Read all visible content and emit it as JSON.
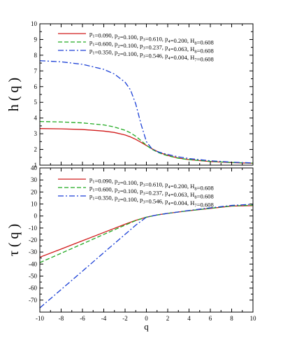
{
  "chart_data": [
    {
      "type": "line",
      "ylabel": "h ( q )",
      "xlabel": "",
      "xlim": [
        -10,
        10
      ],
      "ylim": [
        1,
        10
      ],
      "xticks": [
        -10,
        -8,
        -6,
        -4,
        -2,
        0,
        2,
        4,
        6,
        8,
        10
      ],
      "yticks": [
        1,
        2,
        3,
        4,
        5,
        6,
        7,
        8,
        9,
        10
      ],
      "legend_position": "top-right",
      "series": [
        {
          "name": "p1=0.090, p2=0.100, p3=0.610, p4=0.200, H8=0.608",
          "color": "#d11a1a",
          "dash": "solid",
          "x": [
            -10,
            -8,
            -6,
            -4,
            -3,
            -2,
            -1.5,
            -1,
            -0.5,
            0,
            0.5,
            1,
            1.5,
            2,
            3,
            4,
            6,
            8,
            10
          ],
          "y": [
            3.33,
            3.31,
            3.27,
            3.17,
            3.08,
            2.92,
            2.8,
            2.64,
            2.45,
            2.25,
            2.05,
            1.88,
            1.74,
            1.62,
            1.45,
            1.35,
            1.23,
            1.16,
            1.12
          ]
        },
        {
          "name": "p1=0.600, p2=0.100, p3=0.237, p4=0.063, H8=0.608",
          "color": "#22aa22",
          "dash": "dashed",
          "x": [
            -10,
            -8,
            -6,
            -4,
            -3,
            -2,
            -1.5,
            -1,
            -0.5,
            0,
            0.5,
            1,
            1.5,
            2,
            3,
            4,
            6,
            8,
            10
          ],
          "y": [
            3.78,
            3.75,
            3.69,
            3.56,
            3.43,
            3.22,
            3.06,
            2.84,
            2.56,
            2.27,
            2.02,
            1.84,
            1.7,
            1.6,
            1.44,
            1.35,
            1.24,
            1.17,
            1.13
          ]
        },
        {
          "name": "p1=0.350, p2=0.100, p3=0.546, p4=0.004, H7=0.608",
          "color": "#1a3fd6",
          "dash": "dashdot",
          "x": [
            -10,
            -8,
            -6,
            -4,
            -3,
            -2,
            -1.5,
            -1,
            -0.5,
            0,
            0.5,
            1,
            1.5,
            2,
            3,
            4,
            6,
            8,
            10
          ],
          "y": [
            7.65,
            7.58,
            7.42,
            7.1,
            6.8,
            6.28,
            5.8,
            4.9,
            3.6,
            2.5,
            2.05,
            1.87,
            1.77,
            1.68,
            1.53,
            1.42,
            1.28,
            1.19,
            1.14
          ]
        }
      ]
    },
    {
      "type": "line",
      "ylabel": "τ ( q )",
      "xlabel": "q",
      "xlim": [
        -10,
        10
      ],
      "ylim": [
        -80,
        40
      ],
      "xticks": [
        -10,
        -8,
        -6,
        -4,
        -2,
        0,
        2,
        4,
        6,
        8,
        10
      ],
      "yticks": [
        -70,
        -60,
        -50,
        -40,
        -30,
        -20,
        -10,
        0,
        10,
        20,
        30,
        40
      ],
      "legend_position": "top-right",
      "series": [
        {
          "name": "p1=0.090, p2=0.100, p3=0.610, p4=0.200, H8=0.608",
          "color": "#d11a1a",
          "dash": "solid",
          "x": [
            -10,
            -8,
            -6,
            -4,
            -2,
            -1,
            0,
            1,
            2,
            4,
            6,
            8,
            10
          ],
          "y": [
            -34.3,
            -27.5,
            -20.6,
            -13.7,
            -6.8,
            -3.6,
            -1.0,
            0.9,
            2.2,
            4.4,
            6.3,
            8.3,
            8.6
          ]
        },
        {
          "name": "p1=0.600, p2=0.100, p3=0.237, p4=0.063, H8=0.608",
          "color": "#22aa22",
          "dash": "dashed",
          "x": [
            -10,
            -8,
            -6,
            -4,
            -2,
            -1,
            0,
            1,
            2,
            4,
            6,
            8,
            10
          ],
          "y": [
            -38.8,
            -31.0,
            -23.2,
            -15.3,
            -7.6,
            -3.8,
            -1.0,
            0.8,
            2.2,
            4.4,
            6.4,
            8.4,
            9.0
          ]
        },
        {
          "name": "p1=0.350, p2=0.100, p3=0.546, p4=0.004, H7=0.608",
          "color": "#1a3fd6",
          "dash": "dashdot",
          "x": [
            -10,
            -8,
            -6,
            -4,
            -2,
            -1,
            0,
            1,
            2,
            4,
            6,
            8,
            10
          ],
          "y": [
            -76.5,
            -61.2,
            -45.9,
            -30.5,
            -15.3,
            -7.6,
            -1.0,
            0.9,
            2.2,
            4.6,
            6.8,
            8.8,
            9.8
          ]
        }
      ]
    }
  ]
}
